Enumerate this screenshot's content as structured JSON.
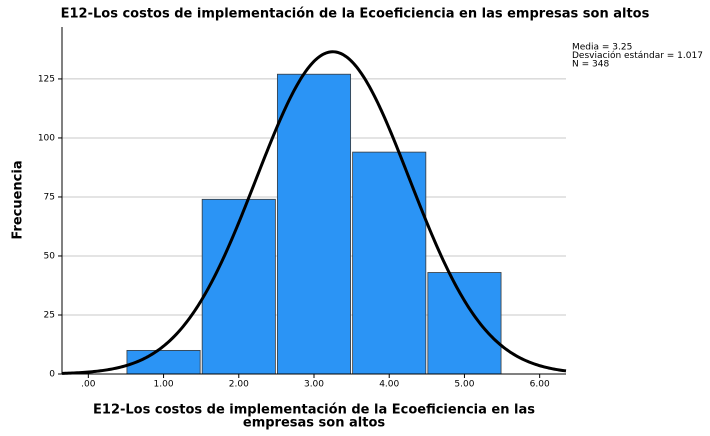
{
  "chart_data": {
    "type": "histogram",
    "title": "E12-Los costos de implementación de la Ecoeficiencia en las empresas son altos",
    "xlabel": [
      "E12-Los costos de implementación de la Ecoeficiencia en las",
      "empresas son altos"
    ],
    "ylabel": "Frecuencia",
    "bins": [
      0.5,
      1.5,
      2.5,
      3.5,
      4.5,
      5.5
    ],
    "values": [
      10,
      74,
      127,
      94,
      43
    ],
    "color": "#2b94f5",
    "edge_color": "#3a3a3a",
    "curve_color": "#000000",
    "xlim": [
      -0.35,
      6.35
    ],
    "ylim": [
      0,
      147
    ],
    "xticks": [
      {
        "value": 0,
        "label": ".00"
      },
      {
        "value": 1,
        "label": "1.00"
      },
      {
        "value": 2,
        "label": "2.00"
      },
      {
        "value": 3,
        "label": "3.00"
      },
      {
        "value": 4,
        "label": "4.00"
      },
      {
        "value": 5,
        "label": "5.00"
      },
      {
        "value": 6,
        "label": "6.00"
      }
    ],
    "yticks": [
      0,
      25,
      50,
      75,
      100,
      125
    ],
    "grid": true,
    "stats": [
      {
        "label": "Media = 3.25",
        "value": 3.25
      },
      {
        "label": "Desviación estándar = 1.017",
        "value": 1.017
      },
      {
        "label": "N = 348",
        "value": 348
      }
    ]
  }
}
